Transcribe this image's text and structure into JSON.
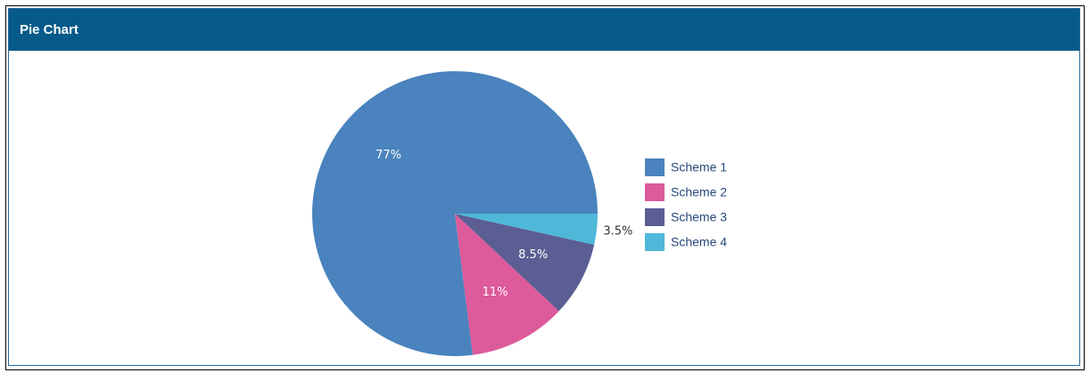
{
  "chart_data": {
    "type": "pie",
    "title": "Pie Chart",
    "categories": [
      "Scheme 1",
      "Scheme 2",
      "Scheme 3",
      "Scheme 4"
    ],
    "values": [
      77,
      11,
      8.5,
      3.5
    ],
    "value_labels": [
      "77%",
      "11%",
      "8.5%",
      "3.5%"
    ],
    "colors": [
      "#4a83bd",
      "#dd5a9b",
      "#5b5e93",
      "#4fb8d9"
    ],
    "legend": "right"
  }
}
